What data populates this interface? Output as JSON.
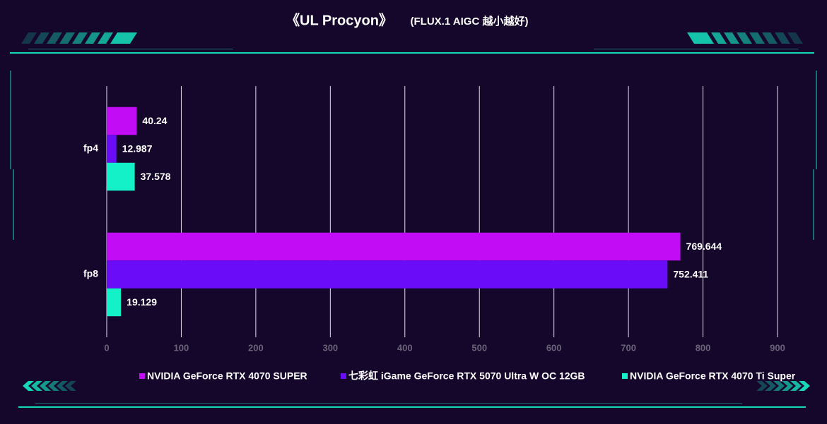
{
  "chart_data": {
    "type": "hbar",
    "title": "《UL Procyon》",
    "subtitle": "(FLUX.1 AIGC 越小越好)",
    "categories": [
      "fp4",
      "fp8"
    ],
    "series": [
      {
        "name": "NVIDIA GeForce RTX 4070 SUPER",
        "color": "#c10cf5",
        "values": [
          40.24,
          769.644
        ]
      },
      {
        "name": "七彩虹 iGame GeForce RTX 5070 Ultra W OC 12GB",
        "color": "#6a0cf7",
        "values": [
          12.987,
          752.411
        ]
      },
      {
        "name": "NVIDIA GeForce RTX 4070 Ti Super",
        "color": "#14f0c8",
        "values": [
          37.578,
          19.129
        ]
      }
    ],
    "xlim": [
      0,
      900
    ],
    "xticks": [
      0,
      100,
      200,
      300,
      400,
      500,
      600,
      700,
      800,
      900
    ],
    "grid": true,
    "legend": "bottom"
  }
}
